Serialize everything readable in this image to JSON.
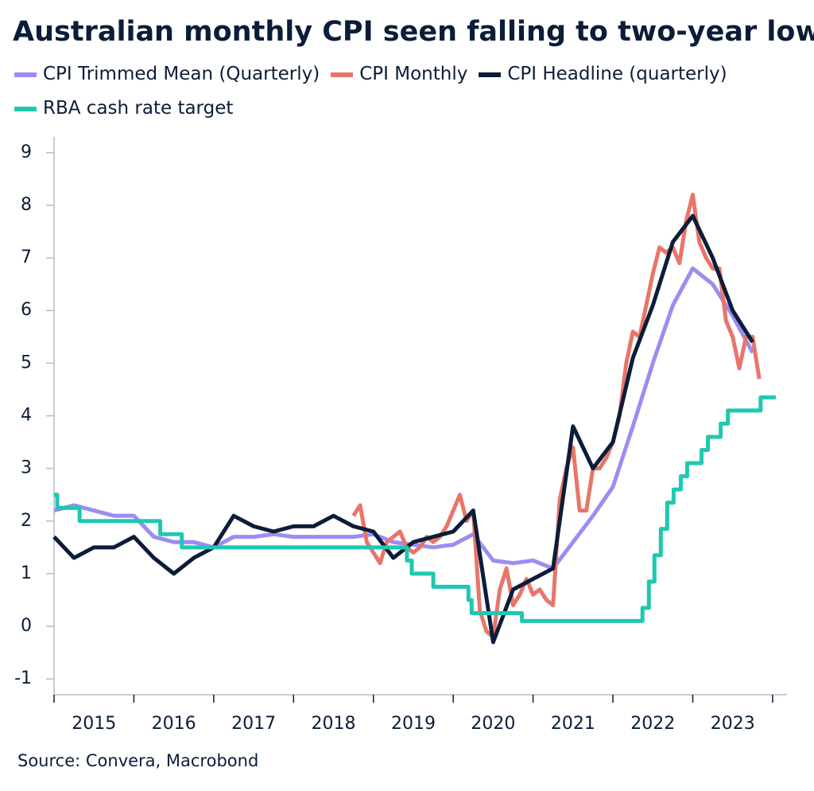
{
  "chart_data": {
    "type": "line",
    "title": "Australian monthly CPI seen falling to two-year lows",
    "source": "Source: Convera, Macrobond",
    "xlim": [
      2015,
      2024.18
    ],
    "ylim": [
      -1.3,
      9.3
    ],
    "yticks": [
      -1,
      0,
      1,
      2,
      3,
      4,
      5,
      6,
      7,
      8,
      9
    ],
    "xticks": [
      {
        "value": 2015.5,
        "label": "2015"
      },
      {
        "value": 2016.5,
        "label": "2016"
      },
      {
        "value": 2017.5,
        "label": "2017"
      },
      {
        "value": 2018.5,
        "label": "2018"
      },
      {
        "value": 2019.5,
        "label": "2019"
      },
      {
        "value": 2020.5,
        "label": "2020"
      },
      {
        "value": 2021.5,
        "label": "2021"
      },
      {
        "value": 2022.5,
        "label": "2022"
      },
      {
        "value": 2023.5,
        "label": "2023"
      }
    ],
    "x_minor_ticks": [
      2015,
      2016,
      2017,
      2018,
      2019,
      2020,
      2021,
      2022,
      2023,
      2024
    ],
    "grid": false,
    "series": [
      {
        "name": "CPI Trimmed Mean (Quarterly)",
        "color": "#9d8cf2",
        "x": [
          2015,
          2015.25,
          2015.5,
          2015.75,
          2016,
          2016.25,
          2016.5,
          2016.75,
          2017,
          2017.25,
          2017.5,
          2017.75,
          2018,
          2018.25,
          2018.5,
          2018.75,
          2019,
          2019.25,
          2019.5,
          2019.75,
          2020,
          2020.25,
          2020.5,
          2020.75,
          2021,
          2021.25,
          2021.5,
          2021.75,
          2022,
          2022.25,
          2022.5,
          2022.75,
          2023,
          2023.25,
          2023.5,
          2023.75
        ],
        "values": [
          2.2,
          2.3,
          2.2,
          2.1,
          2.1,
          1.7,
          1.6,
          1.6,
          1.5,
          1.7,
          1.7,
          1.75,
          1.7,
          1.7,
          1.7,
          1.7,
          1.75,
          1.6,
          1.55,
          1.5,
          1.55,
          1.75,
          1.25,
          1.2,
          1.25,
          1.1,
          1.6,
          2.1,
          2.65,
          3.8,
          5.0,
          6.1,
          6.8,
          6.5,
          5.9,
          5.2
        ]
      },
      {
        "name": "CPI Monthly",
        "color": "#e8756a",
        "x": [
          2018.75,
          2018.833,
          2018.917,
          2019,
          2019.083,
          2019.167,
          2019.25,
          2019.333,
          2019.417,
          2019.5,
          2019.583,
          2019.667,
          2019.75,
          2019.833,
          2019.917,
          2020,
          2020.083,
          2020.167,
          2020.25,
          2020.333,
          2020.417,
          2020.5,
          2020.583,
          2020.667,
          2020.75,
          2020.833,
          2020.917,
          2021,
          2021.083,
          2021.167,
          2021.25,
          2021.333,
          2021.417,
          2021.5,
          2021.583,
          2021.667,
          2021.75,
          2021.833,
          2021.917,
          2022,
          2022.083,
          2022.167,
          2022.25,
          2022.333,
          2022.417,
          2022.5,
          2022.583,
          2022.667,
          2022.75,
          2022.833,
          2022.917,
          2023,
          2023.083,
          2023.167,
          2023.25,
          2023.333,
          2023.417,
          2023.5,
          2023.583,
          2023.667,
          2023.75,
          2023.833
        ],
        "values": [
          2.1,
          2.3,
          1.6,
          1.4,
          1.2,
          1.6,
          1.7,
          1.8,
          1.5,
          1.4,
          1.5,
          1.7,
          1.6,
          1.7,
          1.9,
          2.2,
          2.5,
          2.0,
          2.2,
          0.3,
          -0.1,
          -0.2,
          0.7,
          1.1,
          0.4,
          0.6,
          0.9,
          0.6,
          0.7,
          0.5,
          0.4,
          2.4,
          3.0,
          3.4,
          2.2,
          2.2,
          3.0,
          3.0,
          3.2,
          3.5,
          4.0,
          5.0,
          5.6,
          5.5,
          6.1,
          6.7,
          7.2,
          7.1,
          7.2,
          6.9,
          7.7,
          8.2,
          7.3,
          7.0,
          6.8,
          6.8,
          5.8,
          5.5,
          4.9,
          5.5,
          5.5,
          4.7
        ]
      },
      {
        "name": "CPI Headline (quarterly)",
        "color": "#0b1d38",
        "x": [
          2015,
          2015.25,
          2015.5,
          2015.75,
          2016,
          2016.25,
          2016.5,
          2016.75,
          2017,
          2017.25,
          2017.5,
          2017.75,
          2018,
          2018.25,
          2018.5,
          2018.75,
          2019,
          2019.25,
          2019.5,
          2019.75,
          2020,
          2020.25,
          2020.5,
          2020.75,
          2021,
          2021.25,
          2021.5,
          2021.75,
          2022,
          2022.25,
          2022.5,
          2022.75,
          2023,
          2023.25,
          2023.5,
          2023.75
        ],
        "values": [
          1.7,
          1.3,
          1.5,
          1.5,
          1.7,
          1.3,
          1.0,
          1.3,
          1.5,
          2.1,
          1.9,
          1.8,
          1.9,
          1.9,
          2.1,
          1.9,
          1.8,
          1.3,
          1.6,
          1.7,
          1.8,
          2.2,
          -0.3,
          0.7,
          0.9,
          1.1,
          3.8,
          3.0,
          3.5,
          5.1,
          6.1,
          7.3,
          7.8,
          7.0,
          6.0,
          5.4
        ]
      },
      {
        "name": "RBA cash rate target",
        "color": "#1fc8b0",
        "step": "post",
        "x": [
          2015,
          2015.04,
          2015.32,
          2016.33,
          2016.6,
          2019.42,
          2019.48,
          2019.75,
          2020.19,
          2020.23,
          2020.86,
          2022.37,
          2022.45,
          2022.52,
          2022.6,
          2022.68,
          2022.76,
          2022.85,
          2022.93,
          2023.11,
          2023.19,
          2023.35,
          2023.44,
          2023.85,
          2024.04
        ],
        "values": [
          2.5,
          2.25,
          2.0,
          1.75,
          1.5,
          1.25,
          1.0,
          0.75,
          0.5,
          0.25,
          0.1,
          0.35,
          0.85,
          1.35,
          1.85,
          2.35,
          2.6,
          2.85,
          3.1,
          3.35,
          3.6,
          3.85,
          4.1,
          4.35,
          4.35
        ]
      }
    ]
  }
}
